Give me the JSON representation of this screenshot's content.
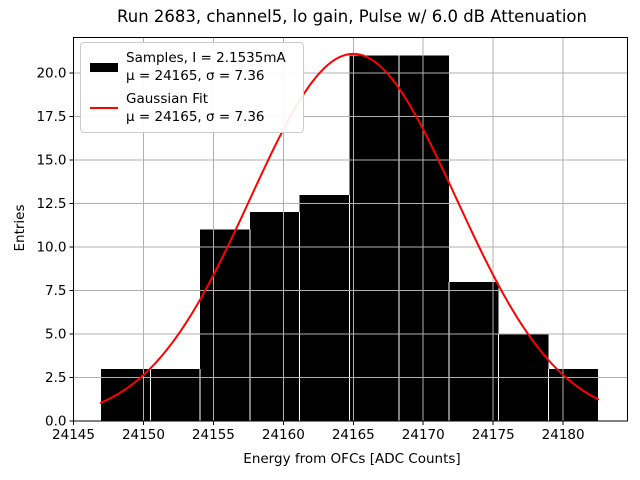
{
  "title": "Run 2683, channel5, lo gain, Pulse w/ 6.0 dB Attenuation",
  "axes": {
    "xlabel": "Energy from OFCs [ADC Counts]",
    "ylabel": "Entries"
  },
  "legend": {
    "position": "upper left",
    "entries": [
      {
        "swatch": "black-thick-line",
        "color": "#000000",
        "line1": "Samples, I = 2.1535mA",
        "line2": "μ = 24165, σ = 7.36"
      },
      {
        "swatch": "red-line",
        "color": "#ff0000",
        "line1": "Gaussian Fit",
        "line2": "μ = 24165, σ = 7.36"
      }
    ]
  },
  "chart_data": {
    "type": "bar",
    "subtype": "histogram-with-gaussian-fit",
    "title": "Run 2683, channel5, lo gain, Pulse w/ 6.0 dB Attenuation",
    "xlabel": "Energy from OFCs [ADC Counts]",
    "ylabel": "Entries",
    "bin_edges": [
      24146.95,
      24150.51,
      24154.06,
      24157.62,
      24161.17,
      24164.73,
      24168.28,
      24171.84,
      24175.39,
      24178.95,
      24182.5
    ],
    "counts": [
      3,
      3,
      11,
      12,
      13,
      21,
      21,
      8,
      5,
      3
    ],
    "bar_color": "#000000",
    "overlay": {
      "type": "line",
      "name": "Gaussian Fit",
      "mu": 24165,
      "sigma": 7.36,
      "amplitude": 21.1,
      "x_range": [
        24146.95,
        24182.5
      ],
      "color": "#ff0000"
    },
    "xlim": [
      24145.0,
      24184.6
    ],
    "ylim": [
      0,
      22.05
    ],
    "xticks": [
      24145,
      24150,
      24155,
      24160,
      24165,
      24170,
      24175,
      24180
    ],
    "xtick_labels": [
      "24145",
      "24150",
      "24155",
      "24160",
      "24165",
      "24170",
      "24175",
      "24180"
    ],
    "yticks": [
      0,
      2.5,
      5,
      7.5,
      10,
      12.5,
      15,
      17.5,
      20
    ],
    "ytick_labels": [
      "0.0",
      "2.5",
      "5.0",
      "7.5",
      "10.0",
      "12.5",
      "15.0",
      "17.5",
      "20.0"
    ],
    "grid": true,
    "grid_color": "#b0b0b0",
    "background": "#ffffff",
    "legend_position": "upper left"
  }
}
